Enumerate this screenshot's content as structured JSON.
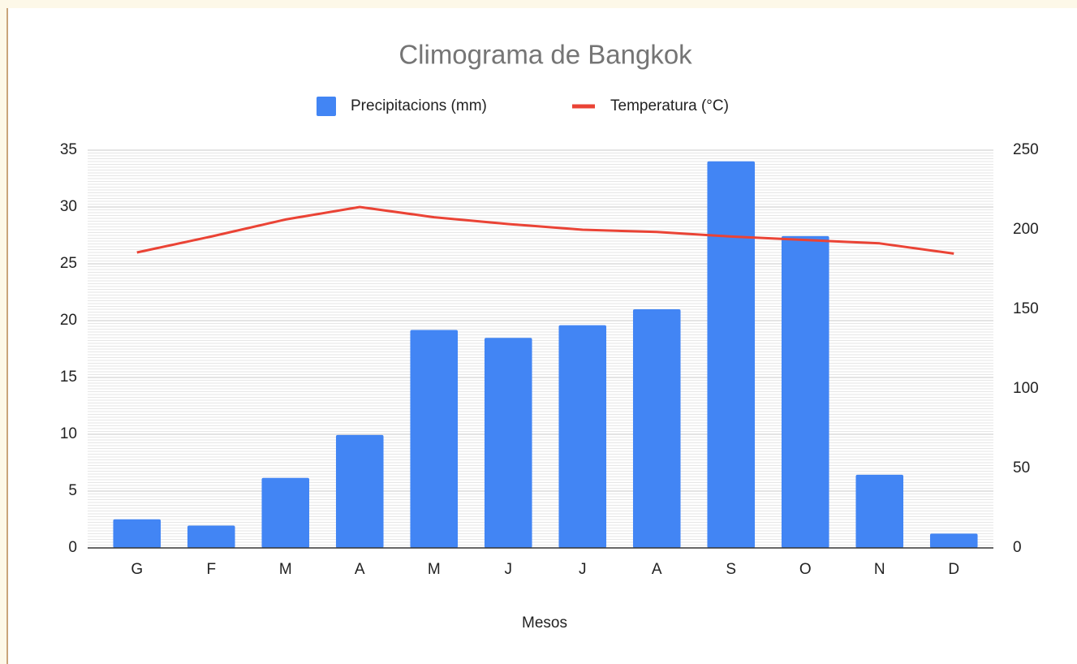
{
  "chart_data": {
    "type": "combo",
    "title": "Climograma de Bangkok",
    "x_label": "Mesos",
    "categories": [
      "G",
      "F",
      "M",
      "A",
      "M",
      "J",
      "J",
      "A",
      "S",
      "O",
      "N",
      "D"
    ],
    "series": [
      {
        "name": "Precipitacions (mm)",
        "type": "bar",
        "axis": "y2",
        "color": "#4285f4",
        "values": [
          18,
          14,
          44,
          71,
          137,
          132,
          140,
          150,
          243,
          196,
          46,
          9
        ]
      },
      {
        "name": "Temperatura (°C)",
        "type": "line",
        "axis": "y",
        "color": "#ea4335",
        "values": [
          26.0,
          27.4,
          28.9,
          30.0,
          29.1,
          28.5,
          28.0,
          27.8,
          27.4,
          27.1,
          26.8,
          25.9
        ]
      }
    ],
    "ylim": [
      0,
      35
    ],
    "yticks": [
      0,
      5,
      10,
      15,
      20,
      25,
      30,
      35
    ],
    "y2lim": [
      0,
      250
    ],
    "y2ticks": [
      0,
      50,
      100,
      150,
      200,
      250
    ],
    "grid": true,
    "minor_grid": true,
    "legend": "top"
  }
}
